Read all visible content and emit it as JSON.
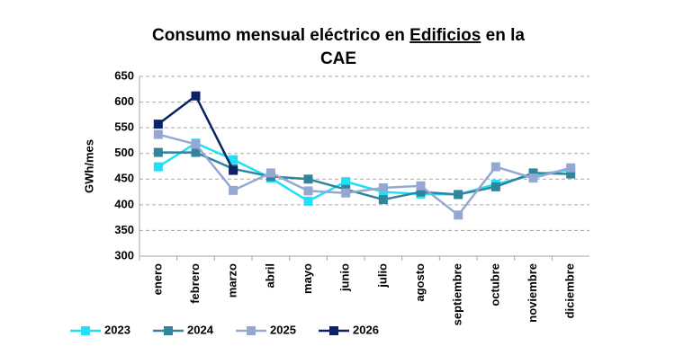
{
  "chart_data": {
    "type": "line",
    "title": [
      "Consumo mensual eléctrico en",
      "Edificios",
      "en la",
      "CAE"
    ],
    "y_label": "GWh/mes",
    "categories": [
      "enero",
      "febrero",
      "marzo",
      "abril",
      "mayo",
      "junio",
      "julio",
      "agosto",
      "septiembre",
      "octubre",
      "noviembre",
      "diciembre"
    ],
    "series": [
      {
        "name": "2023",
        "color": "#1fe0f7",
        "values": [
          474,
          520,
          488,
          452,
          407,
          445,
          425,
          421,
          420,
          440,
          458,
          468
        ]
      },
      {
        "name": "2024",
        "color": "#31849b",
        "values": [
          502,
          502,
          470,
          455,
          450,
          430,
          410,
          425,
          420,
          435,
          462,
          460
        ]
      },
      {
        "name": "2025",
        "color": "#95a8d2",
        "values": [
          537,
          518,
          428,
          462,
          427,
          423,
          433,
          437,
          380,
          474,
          452,
          472
        ]
      },
      {
        "name": "2026",
        "color": "#0c2266",
        "values": [
          557,
          612,
          467,
          null,
          null,
          null,
          null,
          null,
          null,
          null,
          null,
          null
        ]
      }
    ],
    "ylim": [
      300,
      650
    ],
    "yticks": [
      300,
      350,
      400,
      450,
      500,
      550,
      600,
      650
    ],
    "grid": true,
    "legend": "bottom"
  }
}
